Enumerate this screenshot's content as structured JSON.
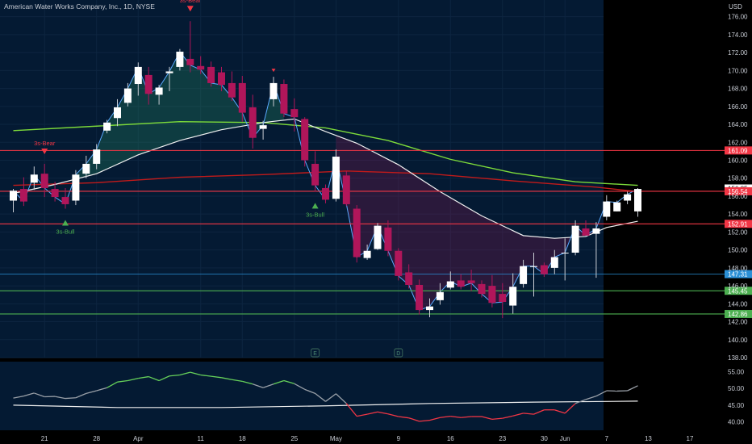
{
  "header": {
    "title": "American Water Works Company, Inc., 1D, NYSE",
    "currency": "USD"
  },
  "colors": {
    "up": "#ffffff",
    "down": "#b0165a",
    "panel": "#041a33",
    "background": "#000000",
    "red_level": "#f23645",
    "green_level": "#4caf50",
    "blue_level": "#2a8fd6",
    "ma_fast": "#5aa9ff",
    "ma_mid": "#f0f0f0",
    "ma_slow_red": "#c21a1a",
    "ma_slow_green": "#7ddb3a"
  },
  "chart_data": {
    "type": "candlestick",
    "title": "American Water Works Company, Inc., 1D, NYSE",
    "ylim": [
      138,
      177.5
    ],
    "y_ticks": [
      "176.00",
      "174.00",
      "172.00",
      "170.00",
      "168.00",
      "166.00",
      "164.00",
      "162.00",
      "160.00",
      "158.00",
      "156.00",
      "154.00",
      "152.00",
      "150.00",
      "148.00",
      "146.00",
      "144.00",
      "142.00",
      "140.00",
      "138.00"
    ],
    "x_ticks": [
      {
        "label": "21",
        "i": 3
      },
      {
        "label": "28",
        "i": 8
      },
      {
        "label": "Apr",
        "i": 12
      },
      {
        "label": "11",
        "i": 18
      },
      {
        "label": "18",
        "i": 22
      },
      {
        "label": "25",
        "i": 27
      },
      {
        "label": "May",
        "i": 31
      },
      {
        "label": "9",
        "i": 37
      },
      {
        "label": "16",
        "i": 42
      },
      {
        "label": "23",
        "i": 47
      },
      {
        "label": "30",
        "i": 51
      },
      {
        "label": "Jun",
        "i": 53
      },
      {
        "label": "7",
        "i": 57
      },
      {
        "label": "13",
        "i": 61
      },
      {
        "label": "17",
        "i": 65
      }
    ],
    "candles": [
      {
        "o": 155.5,
        "h": 156.8,
        "l": 154.2,
        "c": 156.6
      },
      {
        "o": 156.8,
        "h": 158.1,
        "l": 154.9,
        "c": 155.4
      },
      {
        "o": 157.5,
        "h": 159.3,
        "l": 156.7,
        "c": 158.4
      },
      {
        "o": 158.5,
        "h": 159.6,
        "l": 155.9,
        "c": 156.9
      },
      {
        "o": 156.8,
        "h": 157.6,
        "l": 155.4,
        "c": 155.9
      },
      {
        "o": 155.9,
        "h": 156.9,
        "l": 154.6,
        "c": 155.1
      },
      {
        "o": 155.5,
        "h": 158.9,
        "l": 155.0,
        "c": 158.4
      },
      {
        "o": 158.5,
        "h": 160.5,
        "l": 158.0,
        "c": 159.6
      },
      {
        "o": 159.6,
        "h": 161.8,
        "l": 159.0,
        "c": 161.2
      },
      {
        "o": 163.3,
        "h": 164.5,
        "l": 163.0,
        "c": 164.2
      },
      {
        "o": 164.7,
        "h": 166.8,
        "l": 163.8,
        "c": 165.9
      },
      {
        "o": 166.4,
        "h": 168.6,
        "l": 166.0,
        "c": 168.0
      },
      {
        "o": 168.5,
        "h": 170.9,
        "l": 167.2,
        "c": 170.4
      },
      {
        "o": 169.5,
        "h": 170.4,
        "l": 166.2,
        "c": 167.4
      },
      {
        "o": 167.3,
        "h": 168.4,
        "l": 166.2,
        "c": 168.1
      },
      {
        "o": 169.7,
        "h": 170.4,
        "l": 167.7,
        "c": 169.9
      },
      {
        "o": 170.4,
        "h": 172.4,
        "l": 170.0,
        "c": 172.1
      },
      {
        "o": 171.3,
        "h": 175.5,
        "l": 169.8,
        "c": 170.6
      },
      {
        "o": 170.5,
        "h": 171.6,
        "l": 169.6,
        "c": 170.1
      },
      {
        "o": 170.4,
        "h": 171.0,
        "l": 168.2,
        "c": 168.6
      },
      {
        "o": 169.8,
        "h": 170.4,
        "l": 167.7,
        "c": 168.4
      },
      {
        "o": 168.6,
        "h": 169.9,
        "l": 166.6,
        "c": 167.0
      },
      {
        "o": 168.6,
        "h": 169.4,
        "l": 164.3,
        "c": 165.3
      },
      {
        "o": 165.9,
        "h": 167.3,
        "l": 161.3,
        "c": 162.5
      },
      {
        "o": 163.5,
        "h": 164.4,
        "l": 162.3,
        "c": 163.9
      },
      {
        "o": 166.8,
        "h": 169.3,
        "l": 166.0,
        "c": 168.6
      },
      {
        "o": 168.5,
        "h": 169.0,
        "l": 164.8,
        "c": 165.2
      },
      {
        "o": 165.7,
        "h": 166.9,
        "l": 163.2,
        "c": 164.8
      },
      {
        "o": 164.6,
        "h": 164.8,
        "l": 159.3,
        "c": 160.0
      },
      {
        "o": 159.6,
        "h": 161.0,
        "l": 156.5,
        "c": 157.2
      },
      {
        "o": 156.9,
        "h": 157.3,
        "l": 155.2,
        "c": 155.6
      },
      {
        "o": 155.7,
        "h": 161.2,
        "l": 155.4,
        "c": 160.4
      },
      {
        "o": 158.3,
        "h": 158.8,
        "l": 154.9,
        "c": 155.1
      },
      {
        "o": 154.6,
        "h": 155.0,
        "l": 148.6,
        "c": 149.2
      },
      {
        "o": 149.1,
        "h": 150.6,
        "l": 148.9,
        "c": 149.9
      },
      {
        "o": 150.1,
        "h": 153.0,
        "l": 150.0,
        "c": 152.7
      },
      {
        "o": 152.5,
        "h": 153.3,
        "l": 149.3,
        "c": 149.9
      },
      {
        "o": 149.9,
        "h": 150.2,
        "l": 146.6,
        "c": 147.1
      },
      {
        "o": 147.5,
        "h": 148.4,
        "l": 145.7,
        "c": 146.1
      },
      {
        "o": 146.1,
        "h": 146.7,
        "l": 142.8,
        "c": 143.3
      },
      {
        "o": 143.3,
        "h": 144.6,
        "l": 142.5,
        "c": 143.7
      },
      {
        "o": 144.4,
        "h": 146.3,
        "l": 143.9,
        "c": 145.3
      },
      {
        "o": 145.8,
        "h": 147.6,
        "l": 145.6,
        "c": 146.5
      },
      {
        "o": 146.6,
        "h": 147.3,
        "l": 145.6,
        "c": 145.9
      },
      {
        "o": 146.6,
        "h": 147.8,
        "l": 145.4,
        "c": 146.3
      },
      {
        "o": 146.2,
        "h": 146.6,
        "l": 144.7,
        "c": 145.1
      },
      {
        "o": 146.0,
        "h": 147.2,
        "l": 143.6,
        "c": 144.1
      },
      {
        "o": 145.1,
        "h": 146.3,
        "l": 142.4,
        "c": 144.2
      },
      {
        "o": 143.8,
        "h": 147.4,
        "l": 142.9,
        "c": 145.9
      },
      {
        "o": 146.2,
        "h": 148.9,
        "l": 145.8,
        "c": 148.2
      },
      {
        "o": 148.1,
        "h": 149.7,
        "l": 144.8,
        "c": 148.2
      },
      {
        "o": 148.3,
        "h": 148.6,
        "l": 147.0,
        "c": 147.3
      },
      {
        "o": 148.0,
        "h": 150.0,
        "l": 147.3,
        "c": 149.2
      },
      {
        "o": 149.7,
        "h": 151.3,
        "l": 146.6,
        "c": 149.7
      },
      {
        "o": 149.7,
        "h": 153.3,
        "l": 149.4,
        "c": 152.7
      },
      {
        "o": 152.4,
        "h": 153.3,
        "l": 151.6,
        "c": 151.6
      },
      {
        "o": 151.8,
        "h": 153.1,
        "l": 146.9,
        "c": 152.4
      },
      {
        "o": 153.7,
        "h": 156.1,
        "l": 153.3,
        "c": 155.4
      },
      {
        "o": 154.3,
        "h": 155.5,
        "l": 154.3,
        "c": 155.3
      },
      {
        "o": 155.5,
        "h": 156.5,
        "l": 155.1,
        "c": 156.2
      },
      {
        "o": 154.3,
        "h": 156.9,
        "l": 153.7,
        "c": 156.8
      }
    ],
    "cloud_bull_range": [
      6,
      26
    ],
    "cloud_bear_range": [
      31,
      56
    ],
    "ma_mid": [
      [
        0,
        156.3
      ],
      [
        4,
        157.3
      ],
      [
        8,
        158.5
      ],
      [
        12,
        160.6
      ],
      [
        16,
        162.2
      ],
      [
        20,
        163.4
      ],
      [
        24,
        164.2
      ],
      [
        27,
        164.6
      ],
      [
        30,
        163.2
      ],
      [
        33,
        161.9
      ],
      [
        37,
        159.5
      ],
      [
        41,
        156.5
      ],
      [
        45,
        153.8
      ],
      [
        49,
        151.6
      ],
      [
        52,
        151.3
      ],
      [
        55,
        151.5
      ],
      [
        57,
        152.5
      ],
      [
        60,
        153.2
      ]
    ],
    "ma_red": [
      [
        0,
        157.2
      ],
      [
        8,
        157.5
      ],
      [
        16,
        158.1
      ],
      [
        24,
        158.4
      ],
      [
        32,
        158.8
      ],
      [
        40,
        158.5
      ],
      [
        48,
        157.7
      ],
      [
        56,
        157.0
      ],
      [
        60,
        156.5
      ]
    ],
    "ma_green": [
      [
        0,
        163.3
      ],
      [
        8,
        163.8
      ],
      [
        16,
        164.3
      ],
      [
        24,
        164.2
      ],
      [
        30,
        163.6
      ],
      [
        36,
        162.2
      ],
      [
        42,
        160.1
      ],
      [
        48,
        158.6
      ],
      [
        54,
        157.6
      ],
      [
        60,
        157.2
      ]
    ],
    "levels": [
      {
        "label": "161.09",
        "value": 161.09,
        "kind": "red"
      },
      {
        "label": "156.85",
        "value": 156.85,
        "kind": "plain"
      },
      {
        "label": "156.54",
        "value": 156.54,
        "kind": "red"
      },
      {
        "label": "152.91",
        "value": 152.91,
        "kind": "red"
      },
      {
        "label": "147.31",
        "value": 147.31,
        "kind": "blue"
      },
      {
        "label": "145.45",
        "value": 145.45,
        "kind": "green"
      },
      {
        "label": "142.86",
        "value": 142.86,
        "kind": "green"
      }
    ],
    "signals": [
      {
        "label": "3s-Bear",
        "i": 17,
        "type": "bear"
      },
      {
        "label": "",
        "i": 25,
        "type": "bear-small"
      },
      {
        "label": "3s-Bear",
        "i": 3,
        "type": "bear"
      },
      {
        "label": "3s-Bull",
        "i": 5,
        "type": "bull"
      },
      {
        "label": "3s-Bull",
        "i": 29,
        "type": "bull"
      }
    ],
    "event_markers": [
      {
        "label": "E",
        "i": 29
      },
      {
        "label": "D",
        "i": 37
      }
    ],
    "oscillator": {
      "ylim": [
        38,
        57
      ],
      "ticks": [
        "55.00",
        "50.00",
        "45.00",
        "40.00"
      ],
      "line": [
        47.1,
        47.7,
        48.6,
        47.5,
        47.6,
        47.0,
        47.2,
        48.5,
        49.3,
        50.2,
        51.9,
        52.3,
        53.0,
        53.5,
        52.3,
        53.7,
        54.0,
        54.8,
        54.0,
        53.6,
        53.2,
        52.6,
        52.1,
        51.3,
        50.2,
        51.3,
        52.3,
        51.4,
        49.7,
        48.5,
        46.1,
        48.4,
        45.5,
        41.7,
        42.3,
        43.0,
        42.4,
        41.6,
        41.2,
        40.2,
        40.5,
        41.3,
        41.7,
        41.3,
        41.6,
        41.6,
        40.8,
        41.1,
        41.8,
        42.6,
        42.3,
        43.6,
        43.6,
        42.6,
        45.5,
        46.7,
        47.7,
        49.3,
        49.2,
        49.3,
        50.8
      ],
      "signal": [
        [
          0,
          45.0
        ],
        [
          10,
          44.3
        ],
        [
          20,
          44.3
        ],
        [
          30,
          44.8
        ],
        [
          40,
          45.5
        ],
        [
          50,
          45.9
        ],
        [
          60,
          46.2
        ]
      ],
      "threshold": 46
    }
  }
}
